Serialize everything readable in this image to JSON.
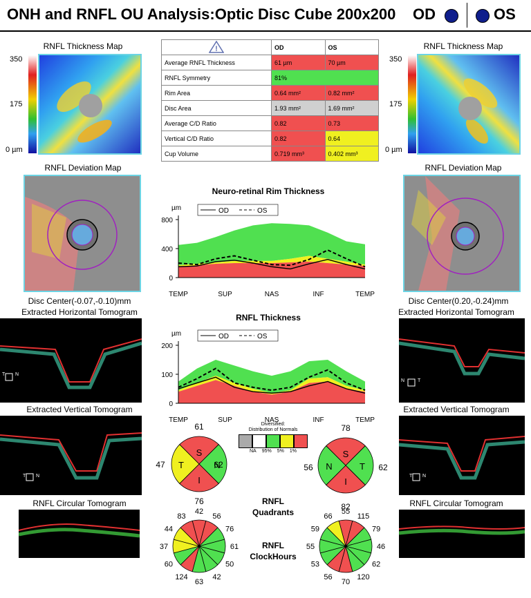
{
  "header": {
    "title": "ONH and RNFL OU Analysis:Optic Disc Cube 200x200",
    "od": "OD",
    "os": "OS"
  },
  "thickness_map": {
    "title": "RNFL Thickness Map",
    "scale_top": "350",
    "scale_mid": "175",
    "scale_bottom": "0 µm"
  },
  "deviation_map": {
    "title": "RNFL Deviation Map",
    "od_center": "Disc Center(-0.07,-0.10)mm",
    "os_center": "Disc Center(0.20,-0.24)mm"
  },
  "tomograms": {
    "horizontal": "Extracted Horizontal Tomogram",
    "vertical": "Extracted Vertical Tomogram",
    "circular": "RNFL Circular Tomogram",
    "marker_t": "T",
    "marker_n": "N"
  },
  "table": {
    "header": [
      "",
      "OD",
      "OS"
    ],
    "rows": [
      {
        "label": "Average RNFL Thickness",
        "od": "61 µm",
        "os": "70 µm"
      },
      {
        "label": "RNFL Symmetry",
        "od": "81%",
        "os": ""
      },
      {
        "label": "Rim Area",
        "od": "0.64 mm²",
        "os": "0.82 mm²"
      },
      {
        "label": "Disc Area",
        "od": "1.93 mm²",
        "os": "1.69 mm²"
      },
      {
        "label": "Average C/D Ratio",
        "od": "0.82",
        "os": "0.73"
      },
      {
        "label": "Vertical C/D Ratio",
        "od": "0.82",
        "os": "0.64"
      },
      {
        "label": "Cup Volume",
        "od": "0.719 mm³",
        "os": "0.402 mm³"
      }
    ]
  },
  "legend": {
    "od": "OD",
    "os": "OS",
    "diversified": "Diversified:",
    "distribution": "Distribution of Normals",
    "keys": [
      "NA",
      "95%",
      "5%",
      "1%"
    ]
  },
  "colors": {
    "red": "#f05050",
    "yellow": "#f0f020",
    "green": "#50e050",
    "gray": "#d0d0d0"
  },
  "chart_data": [
    {
      "type": "area",
      "title": "Neuro-retinal Rim Thickness",
      "ylabel": "µm",
      "ylim": [
        0,
        800
      ],
      "yticks": [
        0,
        400,
        800
      ],
      "xtick_labels": [
        "TEMP",
        "SUP",
        "NAS",
        "INF",
        "TEMP"
      ],
      "x": [
        0,
        10,
        20,
        30,
        40,
        50,
        60,
        70,
        80,
        90,
        100
      ],
      "bands": {
        "red_upper": [
          150,
          170,
          190,
          200,
          200,
          200,
          210,
          220,
          200,
          180,
          160
        ],
        "yellow_upper": [
          170,
          190,
          210,
          230,
          230,
          230,
          260,
          300,
          260,
          220,
          180
        ],
        "green_upper": [
          450,
          480,
          560,
          650,
          720,
          750,
          740,
          720,
          620,
          500,
          460
        ]
      },
      "series": [
        {
          "name": "OD",
          "values": [
            150,
            160,
            220,
            240,
            200,
            150,
            120,
            190,
            250,
            180,
            120
          ]
        },
        {
          "name": "OS",
          "values": [
            200,
            180,
            260,
            300,
            240,
            180,
            170,
            250,
            380,
            260,
            150
          ]
        }
      ]
    },
    {
      "type": "area",
      "title": "RNFL Thickness",
      "ylabel": "µm",
      "ylim": [
        0,
        200
      ],
      "yticks": [
        0,
        100,
        200
      ],
      "xtick_labels": [
        "TEMP",
        "SUP",
        "NAS",
        "INF",
        "TEMP"
      ],
      "x": [
        0,
        10,
        20,
        30,
        40,
        50,
        60,
        70,
        80,
        90,
        100
      ],
      "bands": {
        "red_upper": [
          40,
          60,
          80,
          60,
          40,
          30,
          40,
          70,
          75,
          50,
          40
        ],
        "yellow_upper": [
          45,
          70,
          95,
          70,
          50,
          35,
          45,
          85,
          90,
          60,
          45
        ],
        "green_upper": [
          75,
          120,
          150,
          130,
          110,
          95,
          110,
          145,
          150,
          110,
          75
        ]
      },
      "series": [
        {
          "name": "OD",
          "values": [
            50,
            70,
            90,
            55,
            40,
            35,
            40,
            60,
            75,
            50,
            35
          ]
        },
        {
          "name": "OS",
          "values": [
            55,
            85,
            120,
            70,
            55,
            45,
            55,
            90,
            115,
            70,
            45
          ]
        }
      ]
    },
    {
      "type": "pie",
      "title": "RNFL Quadrants",
      "od": {
        "categories": [
          "S",
          "N",
          "I",
          "T"
        ],
        "values": [
          61,
          62,
          76,
          47
        ],
        "classes": [
          "red",
          "green",
          "red",
          "yellow"
        ]
      },
      "os": {
        "categories": [
          "S",
          "T",
          "I",
          "N"
        ],
        "values": [
          78,
          62,
          82,
          56
        ],
        "classes": [
          "red",
          "green",
          "red",
          "green"
        ]
      }
    },
    {
      "type": "pie",
      "title": "RNFL ClockHours",
      "od": {
        "values": [
          42,
          56,
          76,
          61,
          50,
          42,
          63,
          124,
          60,
          37,
          44,
          83
        ],
        "classes": [
          "red",
          "red",
          "green",
          "green",
          "green",
          "green",
          "green",
          "red",
          "green",
          "yellow",
          "yellow",
          "red"
        ]
      },
      "os": {
        "values": [
          55,
          115,
          79,
          46,
          62,
          120,
          70,
          56,
          53,
          55,
          59,
          66
        ],
        "classes": [
          "red",
          "red",
          "green",
          "green",
          "green",
          "green",
          "red",
          "red",
          "green",
          "green",
          "green",
          "yellow"
        ]
      }
    }
  ],
  "quadrant_title": [
    "RNFL",
    "Quadrants"
  ],
  "clock_title": [
    "RNFL",
    "ClockHours"
  ]
}
